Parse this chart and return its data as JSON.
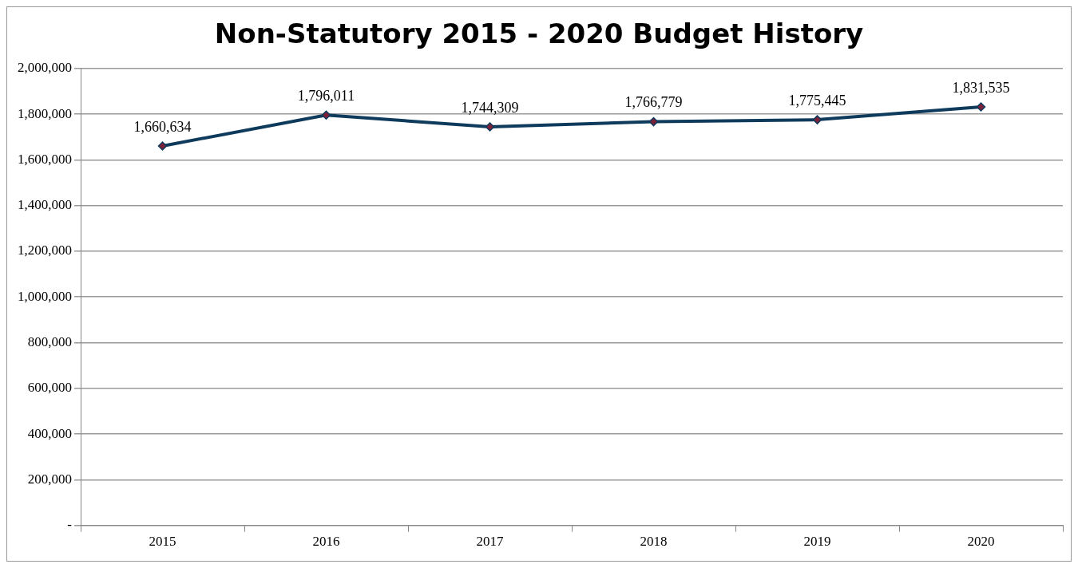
{
  "chart_data": {
    "type": "line",
    "title": "Non-Statutory 2015 - 2020 Budget History",
    "categories": [
      "2015",
      "2016",
      "2017",
      "2018",
      "2019",
      "2020"
    ],
    "series": [
      {
        "color": "#0e3a5c",
        "values": [
          1660634,
          1796011,
          1744309,
          1766779,
          1775445,
          1831535
        ],
        "value_labels": [
          "1,660,634",
          "1,796,011",
          "1,744,309",
          "1,766,779",
          "1,775,445",
          "1,831,535"
        ]
      }
    ],
    "ylim": [
      0,
      2000000
    ],
    "yticks": [
      {
        "value": 0,
        "label": "-"
      },
      {
        "value": 200000,
        "label": "200,000"
      },
      {
        "value": 400000,
        "label": "400,000"
      },
      {
        "value": 600000,
        "label": "600,000"
      },
      {
        "value": 800000,
        "label": "800,000"
      },
      {
        "value": 1000000,
        "label": "1,000,000"
      },
      {
        "value": 1200000,
        "label": "1,200,000"
      },
      {
        "value": 1400000,
        "label": "1,400,000"
      },
      {
        "value": 1600000,
        "label": "1,600,000"
      },
      {
        "value": 1800000,
        "label": "1,800,000"
      },
      {
        "value": 2000000,
        "label": "2,000,000"
      }
    ],
    "grid": "y",
    "legend": false,
    "marker": "diamond",
    "line_style": "solid"
  }
}
